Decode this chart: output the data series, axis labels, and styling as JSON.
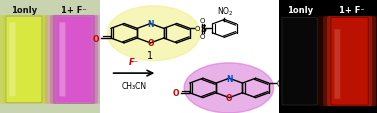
{
  "left_panel": {
    "bg_color": "#c8d4b0",
    "cuvette1_color": "#d8e840",
    "cuvette1_glow": "#c8d820",
    "cuvette2_color": "#d855cc",
    "cuvette2_glow": "#cc44bb",
    "label1": "1only",
    "label2": "1+ F⁻",
    "label_color": "#111111",
    "label_fontsize": 6.0
  },
  "right_panel": {
    "bg_color": "#000000",
    "cuvette1_color": "#050505",
    "cuvette2_color": "#bb1100",
    "cuvette2_glow": "#ee2200",
    "label1": "1only",
    "label2": "1+ F⁻",
    "label_color": "#ffffff",
    "label_fontsize": 6.0
  },
  "arrow_label1": "F⁻",
  "arrow_label2": "CH₃CN",
  "compound_label": "1",
  "middle_bg": "#ffffff",
  "fig_width": 3.77,
  "fig_height": 1.14,
  "dpi": 100
}
